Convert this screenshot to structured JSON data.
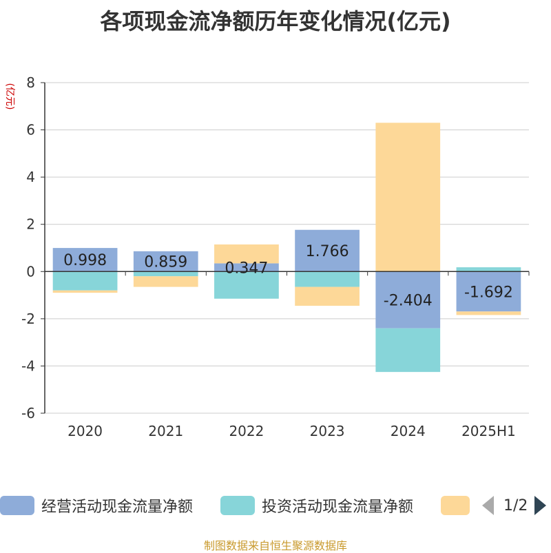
{
  "chart_data": {
    "type": "bar",
    "stacked": true,
    "title": "各项现金流净额历年变化情况(亿元)",
    "ylabel": "(亿元)",
    "ylim": [
      -6,
      8
    ],
    "yticks": [
      -6,
      -4,
      -2,
      0,
      2,
      4,
      6,
      8
    ],
    "categories": [
      "2020",
      "2021",
      "2022",
      "2023",
      "2024",
      "2025H1"
    ],
    "series": [
      {
        "name": "经营活动现金流量净额",
        "color": "#8eacd9",
        "values": [
          0.998,
          0.859,
          0.347,
          1.766,
          -2.404,
          -1.692
        ],
        "labels": [
          "0.998",
          "0.859",
          "0.347",
          "1.766",
          "-2.404",
          "-1.692"
        ]
      },
      {
        "name": "投资活动现金流量净额",
        "color": "#87d5d9",
        "values": [
          -0.8,
          -0.2,
          -1.15,
          -0.65,
          -1.85,
          0.18
        ]
      },
      {
        "color": "#fdd898",
        "values": [
          -0.1,
          -0.45,
          0.8,
          -0.8,
          6.3,
          -0.15
        ]
      }
    ],
    "grid": true,
    "legend_position": "bottom"
  },
  "legend": {
    "page": "1/2"
  },
  "source": "制图数据来自恒生聚源数据库"
}
